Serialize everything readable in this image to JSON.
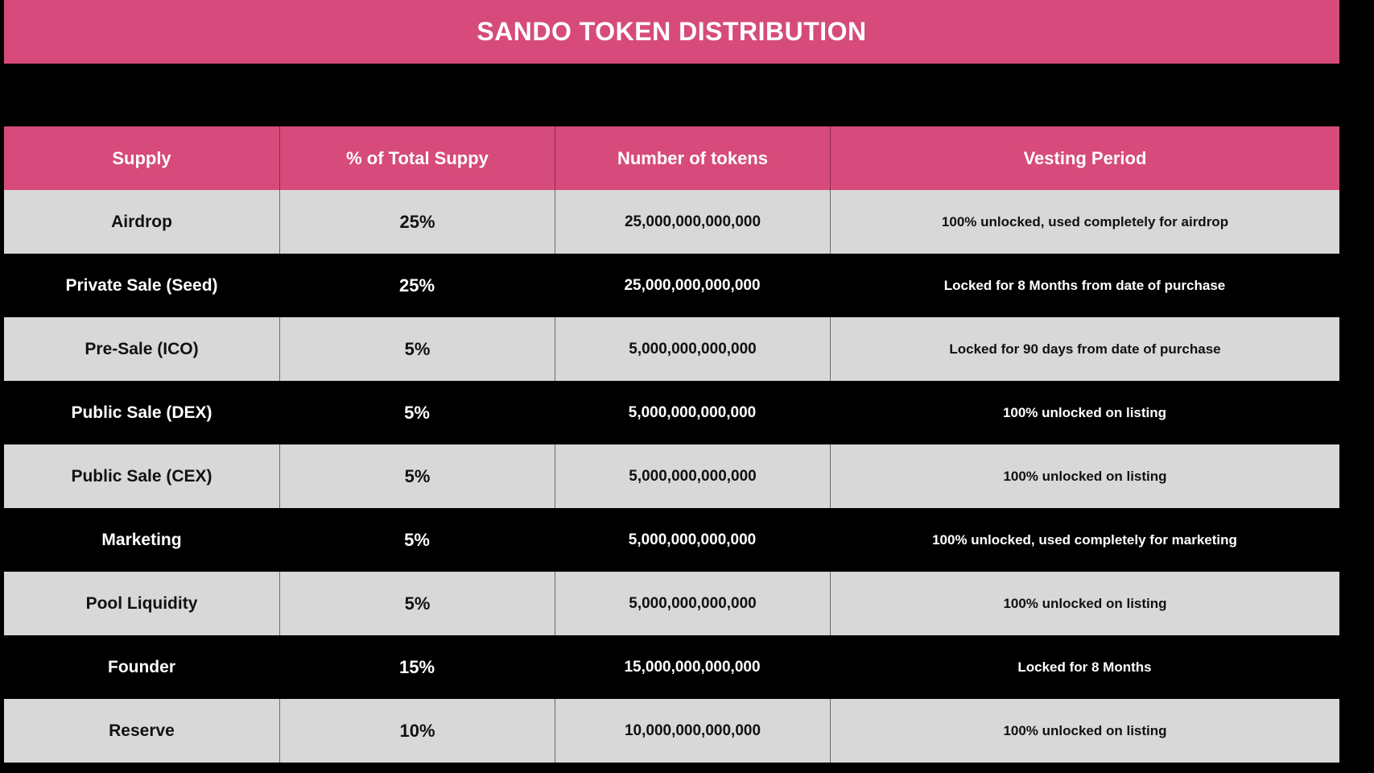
{
  "title": "SANDO TOKEN DISTRIBUTION",
  "colors": {
    "accent": "#d64b7b",
    "light_row": "#d8d8d8",
    "dark_row": "#000000"
  },
  "table": {
    "headers": [
      "Supply",
      "% of Total Suppy",
      "Number of tokens",
      "Vesting Period"
    ],
    "rows": [
      [
        "Airdrop",
        "25%",
        "25,000,000,000,000",
        "100% unlocked, used completely for airdrop"
      ],
      [
        "Private Sale (Seed)",
        "25%",
        "25,000,000,000,000",
        "Locked for 8 Months from date of purchase"
      ],
      [
        "Pre-Sale (ICO)",
        "5%",
        "5,000,000,000,000",
        "Locked for 90 days from date of purchase"
      ],
      [
        "Public Sale (DEX)",
        "5%",
        "5,000,000,000,000",
        "100% unlocked on listing"
      ],
      [
        "Public Sale (CEX)",
        "5%",
        "5,000,000,000,000",
        "100% unlocked on listing"
      ],
      [
        "Marketing",
        "5%",
        "5,000,000,000,000",
        "100% unlocked, used completely for marketing"
      ],
      [
        "Pool Liquidity",
        "5%",
        "5,000,000,000,000",
        "100% unlocked on listing"
      ],
      [
        "Founder",
        "15%",
        "15,000,000,000,000",
        "Locked for 8 Months"
      ],
      [
        "Reserve",
        "10%",
        "10,000,000,000,000",
        "100% unlocked on listing"
      ]
    ]
  }
}
